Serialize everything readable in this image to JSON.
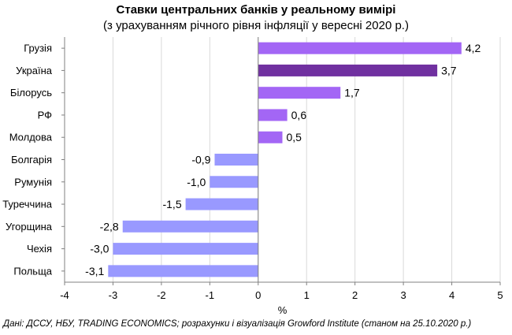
{
  "chart_data": {
    "type": "bar",
    "orientation": "horizontal",
    "title": "Ставки центральних банків у реальному вимірі",
    "subtitle": "(з урахуванням річного рівня інфляції у вересні 2020 р.)",
    "xlabel": "%",
    "ylabel": "",
    "xlim": [
      -4,
      5
    ],
    "xticks": [
      "-4",
      "-3",
      "-2",
      "-1",
      "0",
      "1",
      "2",
      "3",
      "4",
      "5"
    ],
    "grid": "vertical",
    "categories": [
      "Грузія",
      "Україна",
      "Білорусь",
      "РФ",
      "Молдова",
      "Болгарія",
      "Румунія",
      "Туреччина",
      "Угорщина",
      "Чехія",
      "Польща"
    ],
    "values": [
      4.2,
      3.7,
      1.7,
      0.6,
      0.5,
      -0.9,
      -1.0,
      -1.5,
      -2.8,
      -3.0,
      -3.1
    ],
    "value_labels": [
      "4,2",
      "3,7",
      "1,7",
      "0,6",
      "0,5",
      "-0,9",
      "-1,0",
      "-1,5",
      "-2,8",
      "-3,0",
      "-3,1"
    ],
    "colors": {
      "positive": "#A366F5",
      "highlight": "#7030A0",
      "negative": "#9999FF",
      "grid": "#D9D9D9",
      "axis": "#808080"
    },
    "highlight_category": "Україна"
  },
  "source_note": "Дані: ДССУ, НБУ, TRADING ECONOMICS; розрахунки і візуалізація Growford Institute (станом на 25.10.2020 р.)"
}
